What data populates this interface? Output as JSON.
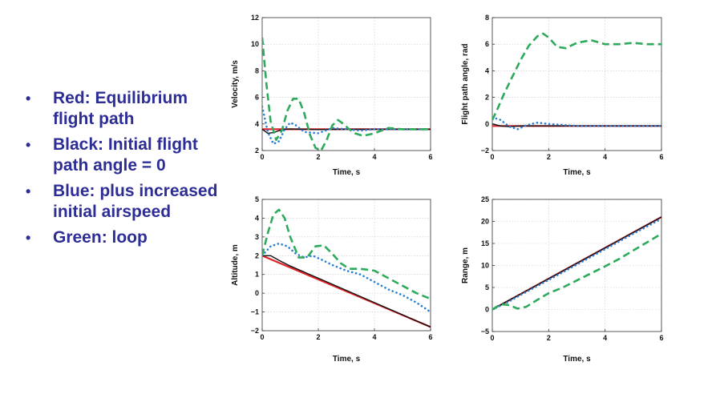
{
  "legend_bullets": [
    "Red: Equilibrium flight path",
    "Black: Initial flight path angle = 0",
    "Blue: plus increased initial airspeed",
    "Green: loop"
  ],
  "colors": {
    "red": "#e0262b",
    "black": "#111111",
    "blue": "#2a7fd4",
    "green": "#2eaa5c",
    "text": "#2d2d96"
  },
  "chart_data": [
    {
      "type": "line",
      "xlabel": "Time, s",
      "ylabel": "Velocity, m/s",
      "xlim": [
        0,
        6
      ],
      "ylim": [
        2,
        12
      ],
      "xticks": [
        0,
        2,
        4,
        6
      ],
      "yticks": [
        2,
        4,
        6,
        8,
        10,
        12
      ],
      "grid": true,
      "series": [
        {
          "color": "red",
          "style": "solid",
          "x": [
            0,
            6
          ],
          "y": [
            3.6,
            3.6
          ]
        },
        {
          "color": "black",
          "style": "solid",
          "x": [
            0,
            0.2,
            0.4,
            0.6,
            0.8,
            1.0,
            1.5,
            2,
            3,
            4,
            5,
            6
          ],
          "y": [
            3.6,
            3.3,
            3.35,
            3.5,
            3.6,
            3.62,
            3.6,
            3.58,
            3.6,
            3.6,
            3.6,
            3.6
          ]
        },
        {
          "color": "blue",
          "style": "dotted",
          "x": [
            0,
            0.2,
            0.4,
            0.6,
            0.8,
            1.0,
            1.2,
            1.5,
            2.0,
            2.5,
            3.0,
            3.5,
            4,
            5,
            6
          ],
          "y": [
            5.3,
            3.4,
            2.5,
            2.7,
            3.6,
            4.1,
            3.9,
            3.4,
            3.3,
            3.7,
            3.6,
            3.5,
            3.6,
            3.6,
            3.6
          ]
        },
        {
          "color": "green",
          "style": "dashed",
          "x": [
            0,
            0.15,
            0.3,
            0.5,
            0.7,
            0.9,
            1.1,
            1.3,
            1.5,
            1.7,
            1.9,
            2.1,
            2.3,
            2.5,
            2.7,
            2.9,
            3.1,
            3.3,
            3.6,
            4.0,
            4.5,
            5,
            6
          ],
          "y": [
            10.5,
            7.0,
            4.2,
            2.8,
            3.5,
            5.0,
            5.9,
            5.9,
            4.8,
            3.2,
            2.2,
            2.0,
            2.8,
            3.9,
            4.3,
            4.0,
            3.6,
            3.3,
            3.1,
            3.3,
            3.7,
            3.6,
            3.6
          ]
        }
      ]
    },
    {
      "type": "line",
      "xlabel": "Time, s",
      "ylabel": "Flight path angle, rad",
      "xlim": [
        0,
        6
      ],
      "ylim": [
        -2,
        8
      ],
      "xticks": [
        0,
        2,
        4,
        6
      ],
      "yticks": [
        -2,
        0,
        2,
        4,
        6,
        8
      ],
      "grid": true,
      "series": [
        {
          "color": "red",
          "style": "solid",
          "x": [
            0,
            6
          ],
          "y": [
            -0.15,
            -0.15
          ]
        },
        {
          "color": "black",
          "style": "solid",
          "x": [
            0,
            0.3,
            0.6,
            1.0,
            2,
            6
          ],
          "y": [
            0,
            -0.15,
            -0.2,
            -0.15,
            -0.15,
            -0.15
          ]
        },
        {
          "color": "blue",
          "style": "dotted",
          "x": [
            0,
            0.3,
            0.6,
            0.9,
            1.2,
            1.6,
            2.0,
            3,
            4,
            6
          ],
          "y": [
            0.5,
            0.3,
            -0.2,
            -0.4,
            -0.1,
            0.1,
            0,
            -0.15,
            -0.15,
            -0.15
          ]
        },
        {
          "color": "green",
          "style": "dashed",
          "x": [
            0,
            0.2,
            0.4,
            0.7,
            1.0,
            1.3,
            1.6,
            1.8,
            2.0,
            2.3,
            2.6,
            3.0,
            3.5,
            4.0,
            4.5,
            5.0,
            5.5,
            6.0
          ],
          "y": [
            0.3,
            1.2,
            2.2,
            3.5,
            4.8,
            5.9,
            6.6,
            6.8,
            6.5,
            5.8,
            5.7,
            6.1,
            6.3,
            6.0,
            6.0,
            6.1,
            6.0,
            6.0
          ]
        }
      ]
    },
    {
      "type": "line",
      "xlabel": "Time, s",
      "ylabel": "Altitude, m",
      "xlim": [
        0,
        6
      ],
      "ylim": [
        -2,
        5
      ],
      "xticks": [
        0,
        2,
        4,
        6
      ],
      "yticks": [
        -2,
        -1,
        0,
        1,
        2,
        3,
        4,
        5
      ],
      "grid": true,
      "series": [
        {
          "color": "red",
          "style": "solid",
          "x": [
            0,
            6
          ],
          "y": [
            2.0,
            -1.8
          ]
        },
        {
          "color": "black",
          "style": "solid",
          "x": [
            0,
            0.3,
            0.6,
            1.0,
            2,
            3,
            4,
            5,
            6
          ],
          "y": [
            2.0,
            2.0,
            1.75,
            1.45,
            0.8,
            0.15,
            -0.5,
            -1.15,
            -1.8
          ]
        },
        {
          "color": "blue",
          "style": "dotted",
          "x": [
            0,
            0.3,
            0.6,
            0.9,
            1.2,
            1.5,
            1.8,
            2.1,
            2.5,
            3,
            3.5,
            4,
            4.5,
            5,
            5.5,
            6
          ],
          "y": [
            2.0,
            2.5,
            2.65,
            2.5,
            2.1,
            1.9,
            2.0,
            1.8,
            1.5,
            1.2,
            1.0,
            0.6,
            0.2,
            -0.1,
            -0.5,
            -1.0
          ]
        },
        {
          "color": "green",
          "style": "dashed",
          "x": [
            0,
            0.2,
            0.4,
            0.6,
            0.8,
            1.0,
            1.3,
            1.6,
            1.9,
            2.2,
            2.5,
            2.8,
            3.1,
            3.5,
            4.0,
            4.5,
            5.0,
            5.5,
            6.0
          ],
          "y": [
            2.0,
            3.2,
            4.2,
            4.45,
            4.0,
            3.0,
            1.9,
            1.9,
            2.5,
            2.55,
            2.1,
            1.6,
            1.3,
            1.3,
            1.2,
            0.8,
            0.4,
            0.0,
            -0.3
          ]
        }
      ]
    },
    {
      "type": "line",
      "xlabel": "Time, s",
      "ylabel": "Range, m",
      "xlim": [
        0,
        6
      ],
      "ylim": [
        -5,
        25
      ],
      "xticks": [
        0,
        2,
        4,
        6
      ],
      "yticks": [
        -5,
        0,
        5,
        10,
        15,
        20,
        25
      ],
      "grid": true,
      "series": [
        {
          "color": "red",
          "style": "solid",
          "x": [
            0,
            6
          ],
          "y": [
            0,
            21
          ]
        },
        {
          "color": "black",
          "style": "solid",
          "x": [
            0,
            0.5,
            1,
            2,
            3,
            4,
            5,
            6
          ],
          "y": [
            0,
            1.8,
            3.5,
            7,
            10.5,
            14,
            17.5,
            21
          ]
        },
        {
          "color": "blue",
          "style": "dotted",
          "x": [
            0,
            0.5,
            1,
            1.5,
            2,
            3,
            4,
            5,
            6
          ],
          "y": [
            0,
            1.5,
            3.3,
            5.0,
            6.7,
            10.2,
            13.7,
            17.2,
            20.6
          ]
        },
        {
          "color": "green",
          "style": "dashed",
          "x": [
            0,
            0.3,
            0.6,
            0.9,
            1.2,
            1.6,
            2.0,
            2.5,
            3.0,
            3.5,
            4.0,
            4.5,
            5.0,
            5.5,
            6.0
          ],
          "y": [
            0,
            1.2,
            1.0,
            0.2,
            0.6,
            2.2,
            3.7,
            5.0,
            6.6,
            8.2,
            9.8,
            11.5,
            13.4,
            15.3,
            17.2
          ]
        }
      ]
    }
  ]
}
